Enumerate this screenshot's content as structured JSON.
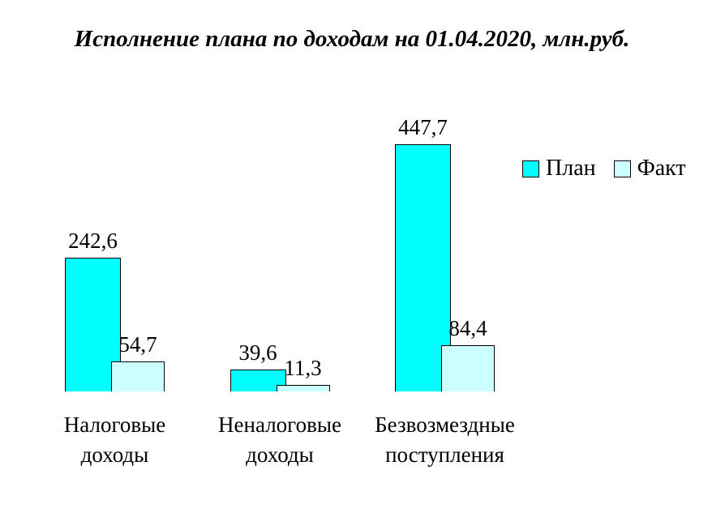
{
  "chart_data": {
    "type": "bar",
    "title": "Исполнение плана по доходам на 01.04.2020, млн.руб.",
    "categories": [
      "Налоговые доходы",
      "Неналоговые доходы",
      "Безвозмездные поступления"
    ],
    "series": [
      {
        "name": "План",
        "color": "#00FFFF",
        "values": [
          242.6,
          39.6,
          447.7
        ],
        "labels": [
          "242,6",
          "39,6",
          "447,7"
        ]
      },
      {
        "name": "Факт",
        "color": "#CCFFFF",
        "values": [
          54.7,
          11.3,
          84.4
        ],
        "labels": [
          "54,7",
          "11,3",
          "84,4"
        ]
      }
    ],
    "ylim": [
      0,
      447.7
    ],
    "grid": false,
    "axes_visible": false,
    "value_labels_position": "outside-end",
    "legend_position": "right",
    "decimal_separator": ",",
    "bar_border_color": "#000000",
    "background_color": "#FFFFFF"
  }
}
